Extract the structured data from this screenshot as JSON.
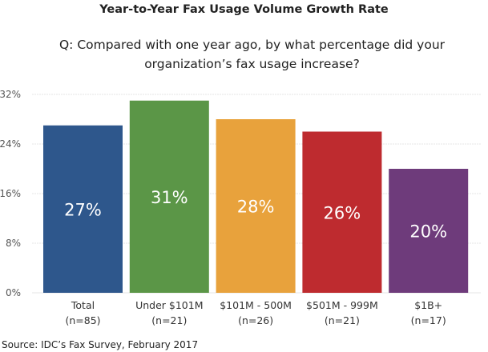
{
  "chart_data": {
    "type": "bar",
    "title": "Year-to-Year Fax Usage Volume Growth Rate",
    "subtitle": "Q: Compared with one year ago, by what percentage did your organization’s fax usage increase?",
    "categories": [
      "Total|(n=85)",
      "Under $101M|(n=21)",
      "$101M - 500M|(n=26)",
      "$501M - 999M|(n=21)",
      "$1B+|(n=17)"
    ],
    "values": [
      27,
      31,
      28,
      26,
      20
    ],
    "data_labels": [
      "27%",
      "31%",
      "28%",
      "26%",
      "20%"
    ],
    "colors": [
      "#2e578c",
      "#5b9647",
      "#e8a23c",
      "#be2b2f",
      "#6e3b7b"
    ],
    "ylim": [
      0,
      32
    ],
    "yticks": [
      "0%",
      "8%",
      "16%",
      "24%",
      "32%"
    ],
    "grid": true,
    "source": "Source: IDC’s Fax Survey, February 2017"
  }
}
